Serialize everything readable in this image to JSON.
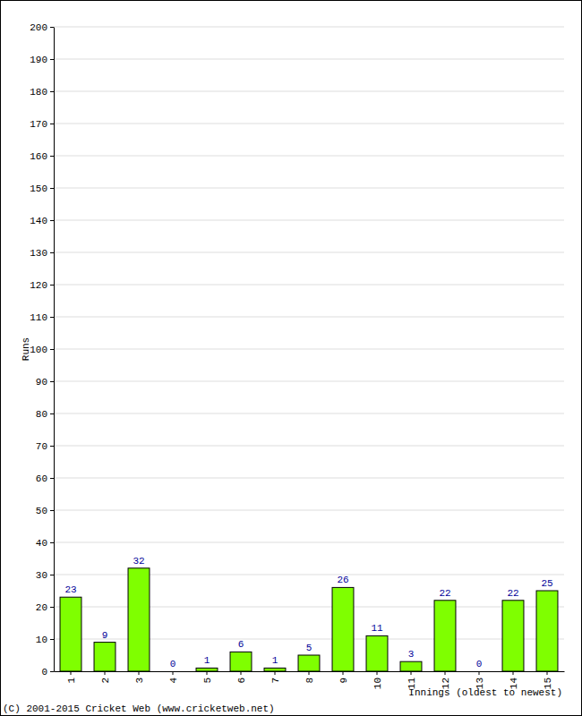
{
  "chart_data": {
    "type": "bar",
    "categories": [
      "1",
      "2",
      "3",
      "4",
      "5",
      "6",
      "7",
      "8",
      "9",
      "10",
      "11",
      "12",
      "13",
      "14",
      "15"
    ],
    "values": [
      23,
      9,
      32,
      0,
      1,
      6,
      1,
      5,
      26,
      11,
      3,
      22,
      0,
      22,
      25
    ],
    "color": "#7fff00",
    "ylim": [
      0,
      200
    ],
    "yticks": [
      0,
      10,
      20,
      30,
      40,
      50,
      60,
      70,
      80,
      90,
      100,
      110,
      120,
      130,
      140,
      150,
      160,
      170,
      180,
      190,
      200
    ],
    "grid": true,
    "data_labels": true,
    "ylabel": "Runs",
    "xlabel": "Innings (oldest to newest)",
    "annotations": [
      "(C) 2001-2015 Cricket Web (www.cricketweb.net)"
    ]
  }
}
